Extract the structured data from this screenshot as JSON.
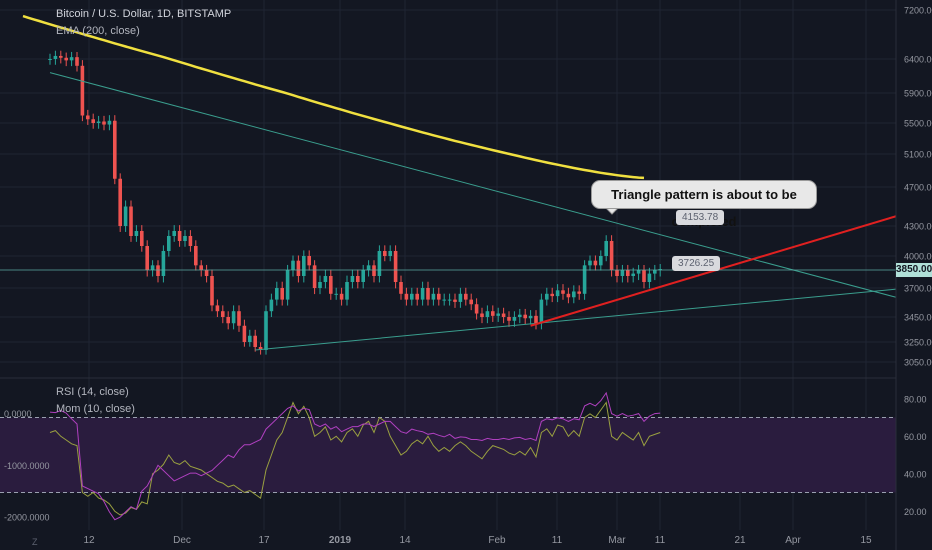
{
  "header": {
    "symbol_title": "Bitcoin / U.S. Dollar, 1D, BITSTAMP",
    "ema_label": "EMA (200, close)",
    "rsi_label": "RSI (14, close)",
    "mom_label": "Mom (10, close)"
  },
  "annotations": {
    "callout_text": "Triangle pattern is about to be completed",
    "price_tag_high": "4153.78",
    "price_tag_low": "3726.25",
    "current_price": "3850.00"
  },
  "corner_label": "Z",
  "colors": {
    "background": "#131722",
    "grid": "#1f2433",
    "up": "#26a69a",
    "down": "#ef5350",
    "ema": "#f0e040",
    "triangle_support": "#e02020",
    "trendlines": "#3a9e8e",
    "rsi_line": "#9aa040",
    "mom_line": "#b040c0",
    "rsi_band": "#2a1c3e"
  },
  "chart_data": [
    {
      "type": "candlestick",
      "x_ticks": [
        "12",
        "Dec",
        "17",
        "2019",
        "14",
        "Feb",
        "11",
        "Mar",
        "11",
        "21",
        "Apr",
        "15"
      ],
      "y_ticks": [
        3050,
        3250,
        3450,
        3700,
        3850,
        4000,
        4300,
        4700,
        5100,
        5500,
        5900,
        6400,
        7200
      ],
      "close_series": [
        6400,
        6450,
        6420,
        6380,
        6430,
        6300,
        5600,
        5550,
        5500,
        5520,
        5480,
        5530,
        4800,
        4300,
        4500,
        4200,
        4250,
        4100,
        3850,
        3900,
        3800,
        4050,
        4200,
        4250,
        4150,
        4200,
        4100,
        3900,
        3850,
        3800,
        3550,
        3500,
        3450,
        3400,
        3500,
        3380,
        3250,
        3300,
        3200,
        3170,
        3500,
        3600,
        3700,
        3600,
        3850,
        3950,
        3800,
        4000,
        3900,
        3700,
        3750,
        3800,
        3650,
        3650,
        3600,
        3750,
        3800,
        3750,
        3850,
        3900,
        3800,
        4050,
        4000,
        4050,
        3750,
        3650,
        3600,
        3650,
        3600,
        3700,
        3600,
        3650,
        3600,
        3600,
        3600,
        3580,
        3650,
        3600,
        3560,
        3480,
        3450,
        3500,
        3460,
        3480,
        3450,
        3420,
        3450,
        3470,
        3440,
        3460,
        3400,
        3600,
        3650,
        3630,
        3680,
        3650,
        3620,
        3670,
        3650,
        3900,
        3950,
        3900,
        4000,
        4150,
        3850,
        3800,
        3850,
        3800,
        3820,
        3850,
        3750,
        3820,
        3850,
        3860
      ],
      "current_price": 3850,
      "ema_200": {
        "start": 7100,
        "end": 4810
      }
    },
    {
      "type": "line",
      "name": "RSI (14, close)",
      "y_ticks": [
        20,
        40,
        60,
        80
      ],
      "y_range": [
        10,
        90
      ],
      "bands": [
        30,
        70
      ],
      "values": [
        62,
        63,
        60,
        58,
        56,
        55,
        30,
        28,
        30,
        27,
        26,
        24,
        20,
        18,
        19,
        22,
        21,
        25,
        24,
        40,
        42,
        45,
        50,
        46,
        45,
        47,
        44,
        43,
        42,
        40,
        38,
        36,
        35,
        33,
        34,
        32,
        30,
        31,
        29,
        27,
        42,
        50,
        58,
        62,
        70,
        78,
        72,
        76,
        70,
        60,
        62,
        65,
        58,
        60,
        57,
        62,
        64,
        60,
        66,
        68,
        62,
        70,
        68,
        60,
        55,
        50,
        52,
        56,
        58,
        56,
        60,
        55,
        52,
        54,
        52,
        55,
        57,
        55,
        52,
        50,
        48,
        52,
        55,
        54,
        53,
        51,
        50,
        52,
        50,
        54,
        49,
        62,
        64,
        60,
        66,
        65,
        60,
        63,
        60,
        70,
        72,
        70,
        74,
        78,
        60,
        58,
        62,
        60,
        58,
        62,
        55,
        60,
        61,
        62
      ]
    },
    {
      "type": "line",
      "name": "Mom (10, close)",
      "y_ticks": [
        -2000,
        -1000,
        0
      ],
      "y_range": [
        -2250,
        650
      ],
      "values": [
        30,
        20,
        60,
        10,
        -100,
        -200,
        -1400,
        -1450,
        -1500,
        -1550,
        -1700,
        -1900,
        -2050,
        -2000,
        -1900,
        -1800,
        -1850,
        -1500,
        -1400,
        -1200,
        -1000,
        -1100,
        -1200,
        -1300,
        -1250,
        -1200,
        -1150,
        -1150,
        -1200,
        -1150,
        -1100,
        -1000,
        -900,
        -800,
        -850,
        -700,
        -600,
        -600,
        -550,
        -500,
        -300,
        -200,
        -100,
        0,
        100,
        150,
        50,
        100,
        80,
        -200,
        -250,
        -200,
        -300,
        -250,
        -350,
        -300,
        -250,
        -250,
        -200,
        -200,
        -250,
        -200,
        -150,
        -150,
        -250,
        -350,
        -380,
        -300,
        -330,
        -350,
        -400,
        -380,
        -420,
        -450,
        -400,
        -480,
        -450,
        -460,
        -500,
        -500,
        -520,
        -480,
        -500,
        -500,
        -480,
        -500,
        -470,
        -460,
        -500,
        -480,
        -520,
        -150,
        -100,
        -120,
        -80,
        -100,
        -150,
        -100,
        -120,
        150,
        200,
        150,
        250,
        400,
        0,
        -50,
        0,
        -50,
        -30,
        0,
        -150,
        -50,
        0,
        10
      ]
    }
  ]
}
